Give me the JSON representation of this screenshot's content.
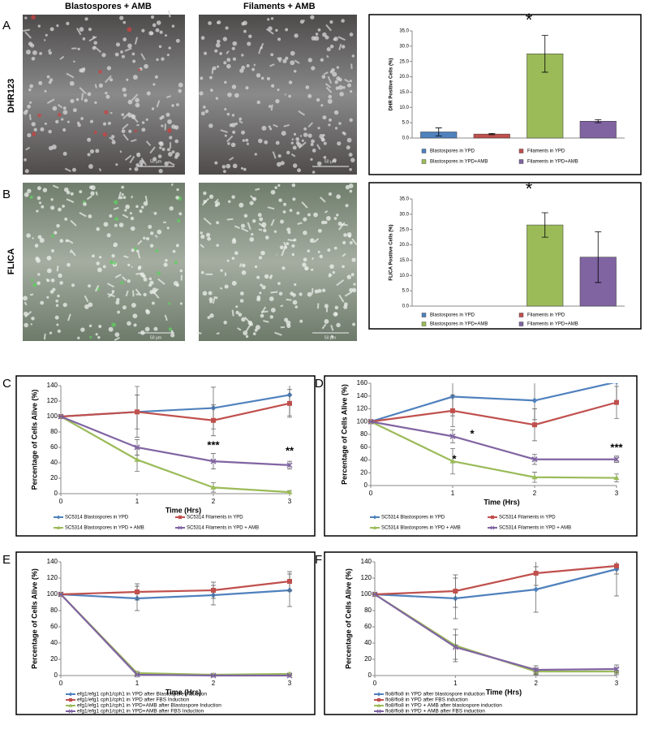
{
  "figure": {
    "column_headers": [
      "Blastospores + AMB",
      "Filaments + AMB"
    ],
    "row_labels": [
      "DHR123",
      "FLICA"
    ],
    "panel_letters": [
      "A",
      "B",
      "C",
      "D",
      "E",
      "F"
    ],
    "scale_bars": [
      "50 µm",
      "50 µm",
      "50 µm",
      "50 µm"
    ]
  },
  "chart_data": [
    {
      "type": "bar",
      "ylabel": "DHR Positive Cells (%)",
      "ylim": [
        0,
        35
      ],
      "yticks": [
        {
          "value": 0,
          "label": "0.0"
        },
        {
          "value": 5,
          "label": "5.0"
        },
        {
          "value": 10,
          "label": "10.0"
        },
        {
          "value": 15,
          "label": "15.0"
        },
        {
          "value": 20,
          "label": "20.0"
        },
        {
          "value": 25,
          "label": "25.0"
        },
        {
          "value": 30,
          "label": "30.0"
        },
        {
          "value": 35,
          "label": "35.0"
        }
      ],
      "grid": false,
      "annotations": [
        "*"
      ],
      "series": [
        {
          "name": "Blastospores in YPD",
          "color": "#4f81bd",
          "values": [
            2.0
          ],
          "errors": [
            1.3
          ]
        },
        {
          "name": "Filaments in YPD",
          "color": "#c0504d",
          "values": [
            1.3
          ],
          "errors": [
            0.2
          ]
        },
        {
          "name": "Blastospores in YPD+AMB",
          "color": "#9bbb59",
          "values": [
            27.5
          ],
          "errors": [
            6.0
          ]
        },
        {
          "name": "Filaments in YPD+AMB",
          "color": "#8064a2",
          "values": [
            5.5
          ],
          "errors": [
            0.5
          ]
        }
      ]
    },
    {
      "type": "bar",
      "ylabel": "FLICA Positive Cells (%)",
      "ylim": [
        0,
        35
      ],
      "yticks": [
        {
          "value": 0,
          "label": "0.0"
        },
        {
          "value": 5,
          "label": "5.0"
        },
        {
          "value": 10,
          "label": "10.0"
        },
        {
          "value": 15,
          "label": "15.0"
        },
        {
          "value": 20,
          "label": "20.0"
        },
        {
          "value": 25,
          "label": "25.0"
        },
        {
          "value": 30,
          "label": "30.0"
        },
        {
          "value": 35,
          "label": "35.0"
        }
      ],
      "grid": false,
      "annotations": [
        "*"
      ],
      "series": [
        {
          "name": "Blastospores in YPD",
          "color": "#4f81bd",
          "values": [
            0
          ],
          "errors": [
            0
          ]
        },
        {
          "name": "Filaments in YPD",
          "color": "#c0504d",
          "values": [
            0
          ],
          "errors": [
            0
          ]
        },
        {
          "name": "Blastospores in YPD+AMB",
          "color": "#9bbb59",
          "values": [
            26.5
          ],
          "errors": [
            4.0
          ]
        },
        {
          "name": "Filaments in YPD+AMB",
          "color": "#8064a2",
          "values": [
            16.0
          ],
          "errors": [
            8.3
          ]
        }
      ]
    },
    {
      "type": "line",
      "ylabel": "Percentage of Cells Alive (%)",
      "xlabel": "Time (Hrs)",
      "x": [
        0,
        1,
        2,
        3
      ],
      "xlim": [
        0,
        3
      ],
      "xticks": [
        0,
        1,
        2,
        3
      ],
      "ylim": [
        0,
        140
      ],
      "yticks": [
        0,
        20,
        40,
        60,
        80,
        100,
        120,
        140
      ],
      "grid": false,
      "annotations": [
        "***",
        "**"
      ],
      "series": [
        {
          "name": "SC5314 Blastospores in YPD",
          "color": "#4f81bd",
          "values": [
            100,
            106,
            111,
            128
          ],
          "errors": [
            0,
            33,
            27,
            27
          ]
        },
        {
          "name": "SC5314 Filaments in YPD",
          "color": "#c0504d",
          "values": [
            100,
            106,
            95,
            117
          ],
          "errors": [
            0,
            22,
            20,
            18
          ]
        },
        {
          "name": "SC5314 Blastospores in YPD + AMB",
          "color": "#9bbb59",
          "values": [
            100,
            44,
            8,
            2
          ],
          "errors": [
            0,
            15,
            6,
            2
          ]
        },
        {
          "name": "SC5314 Filaments in YPD + AMB",
          "color": "#8064a2",
          "values": [
            100,
            60,
            42,
            37
          ],
          "errors": [
            0,
            10,
            10,
            5
          ]
        }
      ]
    },
    {
      "type": "line",
      "ylabel": "Percentage of Cells Alive (%)",
      "xlabel": "Time (Hrs)",
      "x": [
        0,
        1,
        2,
        3
      ],
      "xlim": [
        0,
        3
      ],
      "xticks": [
        0,
        1,
        2,
        3
      ],
      "ylim": [
        0,
        160
      ],
      "yticks": [
        0,
        20,
        40,
        60,
        80,
        100,
        120,
        140,
        160
      ],
      "grid": false,
      "annotations": [
        "*",
        "*",
        "***"
      ],
      "series": [
        {
          "name": "SC5314 Blastospores  in YPD",
          "color": "#4f81bd",
          "values": [
            100,
            139,
            133,
            162
          ],
          "errors": [
            0,
            30,
            30,
            30
          ]
        },
        {
          "name": "SC5314 Filaments  in YPD",
          "color": "#c0504d",
          "values": [
            100,
            117,
            95,
            130
          ],
          "errors": [
            0,
            25,
            25,
            25
          ]
        },
        {
          "name": "SC5314 Blastospores  in YPD + AMB",
          "color": "#9bbb59",
          "values": [
            100,
            38,
            13,
            12
          ],
          "errors": [
            0,
            20,
            8,
            6
          ]
        },
        {
          "name": "SC5314 Filaments  in YPD + AMB",
          "color": "#8064a2",
          "values": [
            100,
            77,
            41,
            41
          ],
          "errors": [
            0,
            10,
            8,
            5
          ]
        }
      ]
    },
    {
      "type": "line",
      "ylabel": "Percentage of Cells Alive (%)",
      "xlabel": "Time (Hrs)",
      "x": [
        0,
        1,
        2,
        3
      ],
      "xlim": [
        0,
        3
      ],
      "xticks": [
        0,
        1,
        2,
        3
      ],
      "ylim": [
        0,
        140
      ],
      "yticks": [
        0,
        20,
        40,
        60,
        80,
        100,
        120,
        140
      ],
      "grid": false,
      "annotations": [],
      "series": [
        {
          "name": "efg1/efg1 cph1/cph1 in YPD after Blastospore Induction",
          "color": "#4f81bd",
          "values": [
            100,
            95,
            99,
            105
          ],
          "errors": [
            0,
            15,
            12,
            20
          ]
        },
        {
          "name": "efg1/efg1 cph1/cph1 in YPD after FBS Induction",
          "color": "#c0504d",
          "values": [
            100,
            103,
            105,
            116
          ],
          "errors": [
            0,
            10,
            10,
            12
          ]
        },
        {
          "name": "efg1/efg1 cph1/cph1 in YPD+AMB after Blastospore Induction",
          "color": "#9bbb59",
          "values": [
            100,
            3,
            1,
            2
          ],
          "errors": [
            0,
            2,
            1,
            1
          ]
        },
        {
          "name": "efg1/efg1 cph1/cph1 in YPD+AMB after FBS Induction",
          "color": "#8064a2",
          "values": [
            100,
            1,
            0,
            0
          ],
          "errors": [
            0,
            1,
            0,
            0
          ]
        }
      ]
    },
    {
      "type": "line",
      "ylabel": "Percentage of Cells Alive (%)",
      "xlabel": "Time (Hrs)",
      "x": [
        0,
        1,
        2,
        3
      ],
      "xlim": [
        0,
        3
      ],
      "xticks": [
        0,
        1,
        2,
        3
      ],
      "ylim": [
        0,
        140
      ],
      "yticks": [
        0,
        20,
        40,
        60,
        80,
        100,
        120,
        140
      ],
      "grid": false,
      "annotations": [],
      "series": [
        {
          "name": "flo8/flo8 in YPD after blastospore induction",
          "color": "#4f81bd",
          "values": [
            100,
            95,
            106,
            131
          ],
          "errors": [
            0,
            25,
            28,
            33
          ]
        },
        {
          "name": "flo8/flo8 in YPD after FBS induction",
          "color": "#c0504d",
          "values": [
            100,
            104,
            126,
            135
          ],
          "errors": [
            0,
            20,
            15,
            10
          ]
        },
        {
          "name": "flo8/flo8 in YPD + AMB after blastospore induction",
          "color": "#9bbb59",
          "values": [
            100,
            37,
            5,
            5
          ],
          "errors": [
            0,
            20,
            4,
            4
          ]
        },
        {
          "name": "flo8/flo8 in YPD + AMB after FBS induction",
          "color": "#8064a2",
          "values": [
            100,
            35,
            7,
            8
          ],
          "errors": [
            0,
            15,
            5,
            5
          ]
        }
      ]
    }
  ]
}
